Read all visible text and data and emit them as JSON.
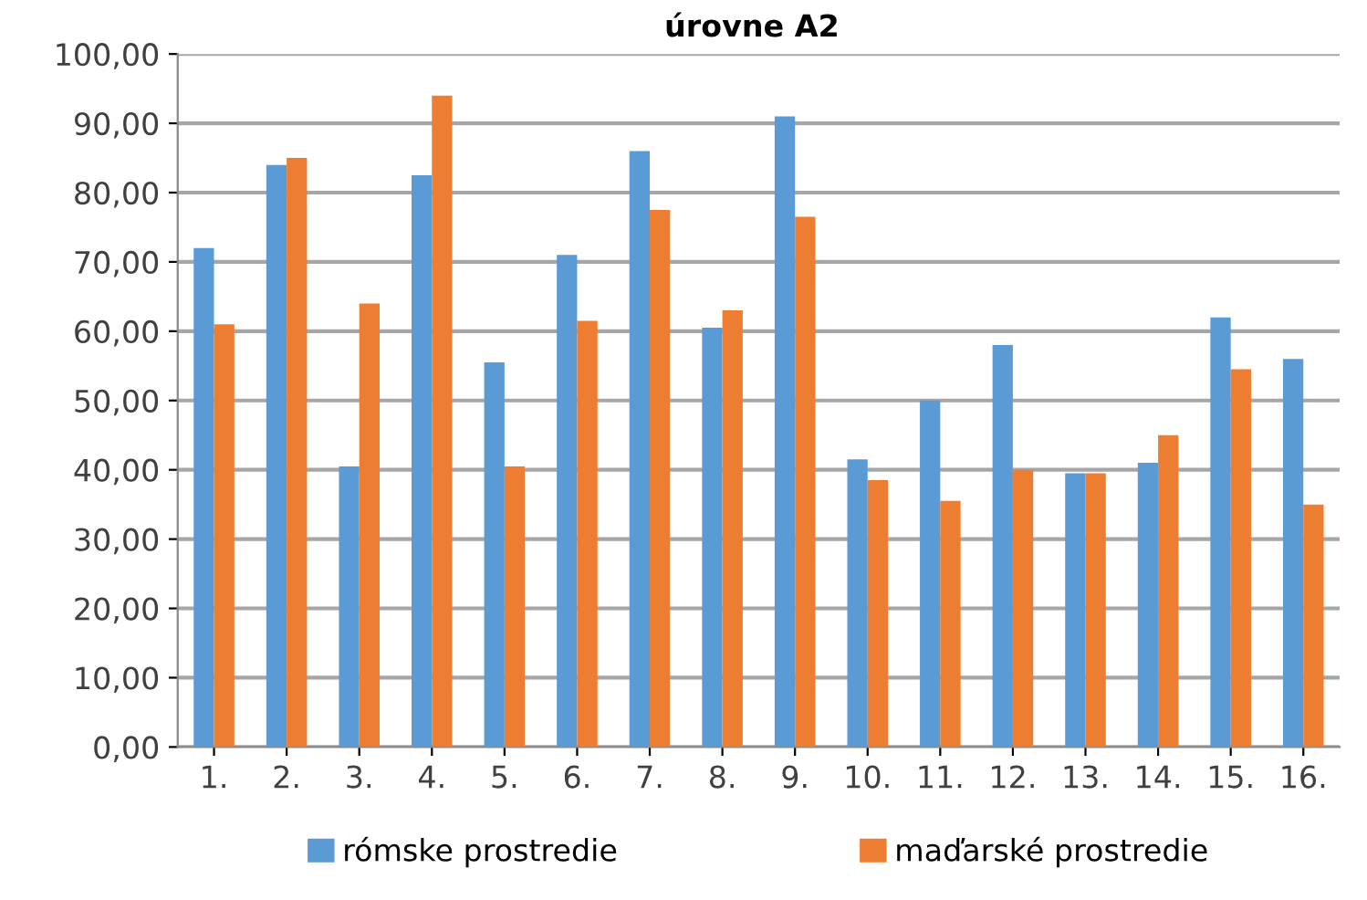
{
  "chart_data": {
    "type": "bar",
    "title": "úrovne A2",
    "categories": [
      "1.",
      "2.",
      "3.",
      "4.",
      "5.",
      "6.",
      "7.",
      "8.",
      "9.",
      "10.",
      "11.",
      "12.",
      "13.",
      "14.",
      "15.",
      "16."
    ],
    "series": [
      {
        "name": "rómske prostredie",
        "color": "#5b9bd5",
        "values": [
          72,
          84,
          40.5,
          82.5,
          55.5,
          71,
          86,
          60.5,
          91,
          41.5,
          50,
          58,
          39.5,
          41,
          62,
          56
        ]
      },
      {
        "name": "maďarské prostredie",
        "color": "#ed7d31",
        "values": [
          61,
          85,
          64,
          94,
          40.5,
          61.5,
          77.5,
          63,
          76.5,
          38.5,
          35.5,
          40,
          39.5,
          45,
          54.5,
          35
        ]
      }
    ],
    "ylim": [
      0,
      100
    ],
    "yticks": [
      {
        "value": 0,
        "label": "0,00"
      },
      {
        "value": 10,
        "label": "10,00"
      },
      {
        "value": 20,
        "label": "20,00"
      },
      {
        "value": 30,
        "label": "30,00"
      },
      {
        "value": 40,
        "label": "40,00"
      },
      {
        "value": 50,
        "label": "50,00"
      },
      {
        "value": 60,
        "label": "60,00"
      },
      {
        "value": 70,
        "label": "70,00"
      },
      {
        "value": 80,
        "label": "80,00"
      },
      {
        "value": 90,
        "label": "90,00"
      },
      {
        "value": 100,
        "label": "100,00"
      }
    ],
    "grid": "y",
    "legend": "bottom"
  }
}
